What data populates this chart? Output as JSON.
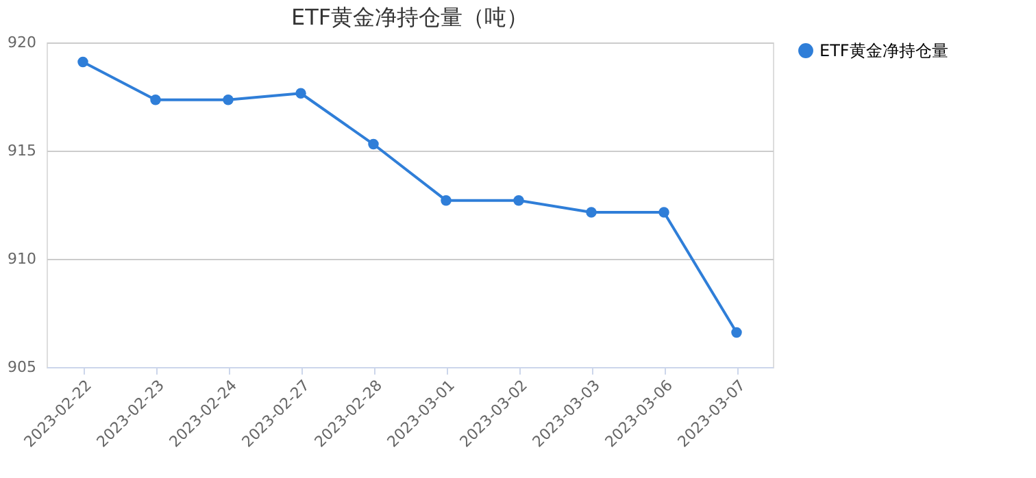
{
  "chart_data": {
    "type": "line",
    "title": "ETF黄金净持仓量（吨）",
    "categories": [
      "2023-02-22",
      "2023-02-23",
      "2023-02-24",
      "2023-02-27",
      "2023-02-28",
      "2023-03-01",
      "2023-03-02",
      "2023-03-03",
      "2023-03-06",
      "2023-03-07"
    ],
    "series": [
      {
        "name": "ETF黄金净持仓量",
        "color": "#2f7ed8",
        "values": [
          919.1,
          917.35,
          917.35,
          917.65,
          915.3,
          912.7,
          912.7,
          912.15,
          912.15,
          906.6
        ]
      }
    ],
    "ylim": [
      905,
      920
    ],
    "yticks": [
      905,
      910,
      915,
      920
    ],
    "grid": "y",
    "legend": "right",
    "marker": "circle",
    "line_style": "solid"
  }
}
